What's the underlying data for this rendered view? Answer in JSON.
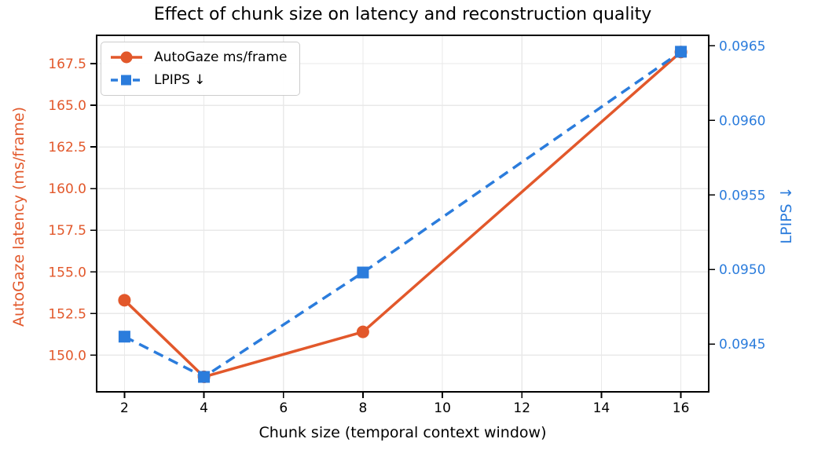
{
  "chart_data": {
    "type": "line",
    "title": "Effect of chunk size on latency and reconstruction quality",
    "xlabel": "Chunk size (temporal context window)",
    "ylabel_left": "AutoGaze latency (ms/frame)",
    "ylabel_right": "LPIPS ↓",
    "x": [
      2,
      4,
      8,
      16
    ],
    "series": [
      {
        "name": "AutoGaze ms/frame",
        "axis": "left",
        "values": [
          153.3,
          148.7,
          151.4,
          168.2
        ],
        "color": "#e2582b",
        "marker": "circle",
        "linestyle": "solid"
      },
      {
        "name": "LPIPS ↓",
        "axis": "right",
        "values": [
          0.09455,
          0.09428,
          0.09498,
          0.09646
        ],
        "color": "#2b7cdc",
        "marker": "square",
        "linestyle": "dashed"
      }
    ],
    "xlim": [
      1.3,
      16.7
    ],
    "xticks": [
      2,
      4,
      6,
      8,
      10,
      12,
      14,
      16
    ],
    "xtick_labels": [
      "2",
      "4",
      "6",
      "8",
      "10",
      "12",
      "14",
      "16"
    ],
    "ylim_left": [
      147.8,
      169.2
    ],
    "yticks_left": [
      150.0,
      152.5,
      155.0,
      157.5,
      160.0,
      162.5,
      165.0,
      167.5
    ],
    "ytick_labels_left": [
      "150.0",
      "152.5",
      "155.0",
      "157.5",
      "160.0",
      "162.5",
      "165.0",
      "167.5"
    ],
    "ylim_right": [
      0.09418,
      0.09657
    ],
    "yticks_right": [
      0.0945,
      0.095,
      0.0955,
      0.096,
      0.0965
    ],
    "ytick_labels_right": [
      "0.0945",
      "0.0950",
      "0.0955",
      "0.0960",
      "0.0965"
    ],
    "grid": true,
    "legend_position": "upper left"
  },
  "legend": {
    "items": [
      {
        "label": "AutoGaze ms/frame"
      },
      {
        "label": "LPIPS ↓"
      }
    ]
  },
  "colors": {
    "left_axis": "#e2582b",
    "right_axis": "#2b7cdc",
    "grid": "#e9e9e9",
    "spine": "#000000",
    "x_tick_label": "#000000",
    "title": "#000000",
    "legend_border": "#cccccc",
    "background": "#ffffff"
  }
}
